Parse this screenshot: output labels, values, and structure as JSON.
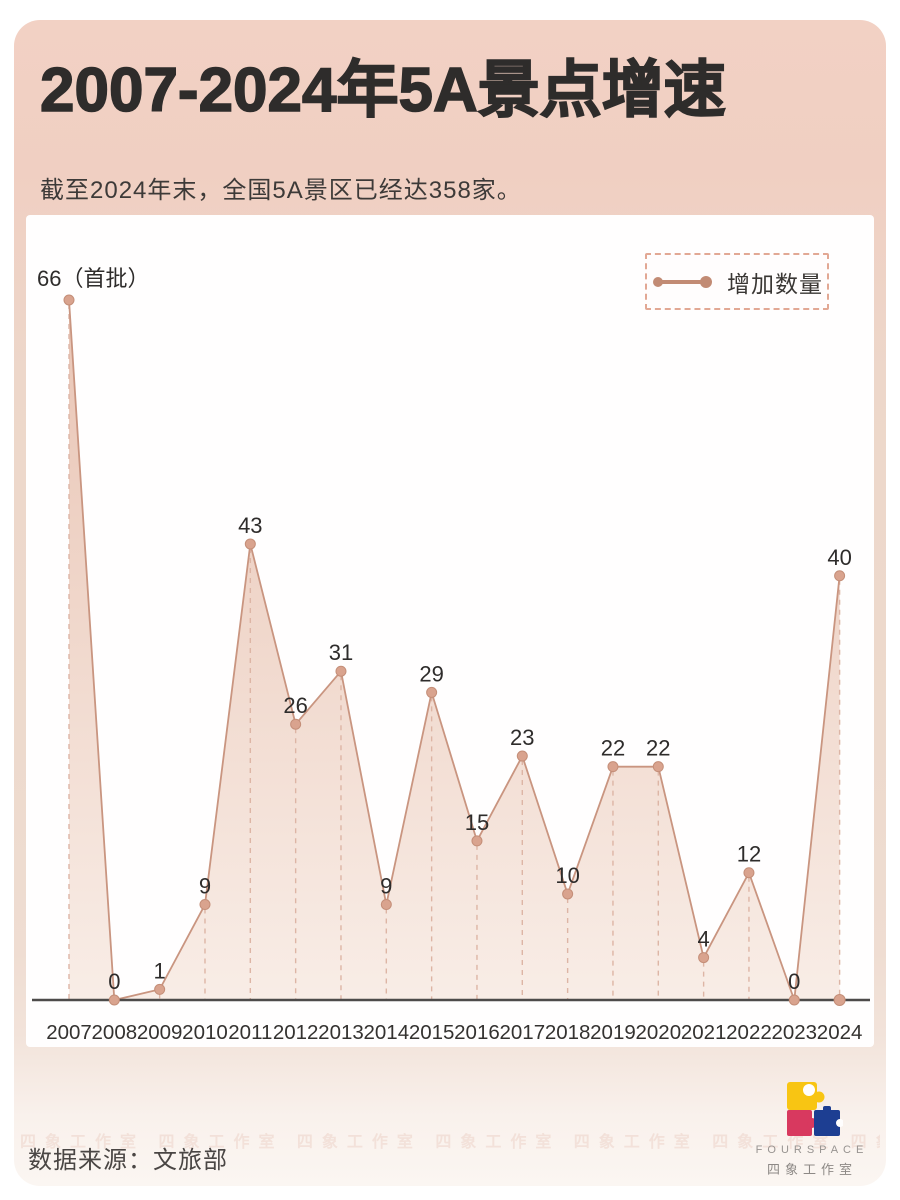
{
  "header": {
    "title": "2007-2024年5A景点增速",
    "subtitle": "截至2024年末，全国5A景区已经达358家。"
  },
  "legend": {
    "label": "增加数量"
  },
  "chart_data": {
    "type": "line",
    "title": "2007-2024年5A景点增速",
    "x": [
      "2007",
      "2008",
      "2009",
      "2010",
      "2011",
      "2012",
      "2013",
      "2014",
      "2015",
      "2016",
      "2017",
      "2018",
      "2019",
      "2020",
      "2021",
      "2022",
      "2023",
      "2024"
    ],
    "series": [
      {
        "name": "增加数量",
        "values": [
          66,
          0,
          1,
          9,
          43,
          26,
          31,
          9,
          29,
          15,
          23,
          10,
          22,
          22,
          4,
          12,
          0,
          40
        ]
      }
    ],
    "point_labels": [
      "66（首批）",
      "0",
      "1",
      "9",
      "43",
      "26",
      "31",
      "9",
      "29",
      "15",
      "23",
      "10",
      "22",
      "22",
      "4",
      "12",
      "0",
      "40"
    ],
    "area": true,
    "markers": true,
    "grid": "dashed vertical drop lines from each point to x-axis",
    "legend_position": "top-right",
    "ylim": [
      0,
      66
    ],
    "colors": {
      "line": "#c99580",
      "dot_fill": "#d9a38e",
      "dot_stroke": "#c48e78",
      "area_top": "#e8c2b1",
      "area_bottom": "#f8ece5",
      "drop_line": "#ddb5a5",
      "axis": "#4d4b4a",
      "point_label": "#2e2c2b",
      "tick_label": "#343230"
    }
  },
  "footer": {
    "source": "数据来源：文旅部",
    "brand_en": "FOURSPACE",
    "brand_cn": "四象工作室",
    "watermark": "四象工作室"
  },
  "theme": {
    "card_pink": "#f2d1c4",
    "panel_bg": "#fffefe"
  }
}
